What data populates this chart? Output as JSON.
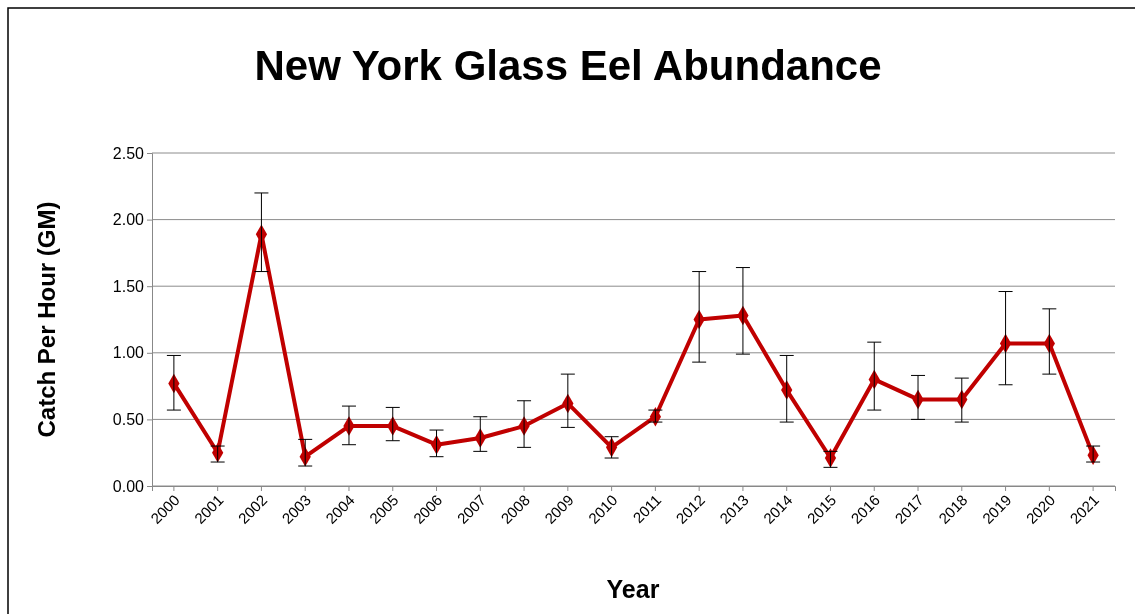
{
  "chart_data": {
    "type": "line",
    "title": "New York Glass Eel Abundance",
    "xlabel": "Year",
    "ylabel": "Catch Per Hour (GM)",
    "categories": [
      "2000",
      "2001",
      "2002",
      "2003",
      "2004",
      "2005",
      "2006",
      "2007",
      "2008",
      "2009",
      "2010",
      "2011",
      "2012",
      "2013",
      "2014",
      "2015",
      "2016",
      "2017",
      "2018",
      "2019",
      "2020",
      "2021"
    ],
    "series": [
      {
        "color": "#c00000",
        "values": [
          0.77,
          0.25,
          1.89,
          0.22,
          0.45,
          0.45,
          0.31,
          0.36,
          0.45,
          0.62,
          0.29,
          0.52,
          1.25,
          1.28,
          0.72,
          0.21,
          0.8,
          0.65,
          0.65,
          1.07,
          1.07,
          0.23
        ],
        "errors": [
          [
            0.57,
            0.98
          ],
          [
            0.18,
            0.3
          ],
          [
            1.61,
            2.2
          ],
          [
            0.15,
            0.35
          ],
          [
            0.31,
            0.6
          ],
          [
            0.34,
            0.59
          ],
          [
            0.22,
            0.42
          ],
          [
            0.26,
            0.52
          ],
          [
            0.29,
            0.64
          ],
          [
            0.44,
            0.84
          ],
          [
            0.21,
            0.37
          ],
          [
            0.48,
            0.57
          ],
          [
            0.93,
            1.61
          ],
          [
            0.99,
            1.64
          ],
          [
            0.48,
            0.98
          ],
          [
            0.14,
            0.26
          ],
          [
            0.57,
            1.08
          ],
          [
            0.5,
            0.83
          ],
          [
            0.48,
            0.81
          ],
          [
            0.76,
            1.46
          ],
          [
            0.84,
            1.33
          ],
          [
            0.18,
            0.3
          ]
        ]
      }
    ],
    "ylim": [
      0,
      2.5
    ],
    "yticks": [
      {
        "value": 0,
        "label": "0.00"
      },
      {
        "value": 0.5,
        "label": "0.50"
      },
      {
        "value": 1,
        "label": "1.00"
      },
      {
        "value": 1.5,
        "label": "1.50"
      },
      {
        "value": 2,
        "label": "2.00"
      },
      {
        "value": 2.5,
        "label": "2.50"
      }
    ],
    "grid": "y",
    "marker": "diamond",
    "line_style": "solid"
  }
}
